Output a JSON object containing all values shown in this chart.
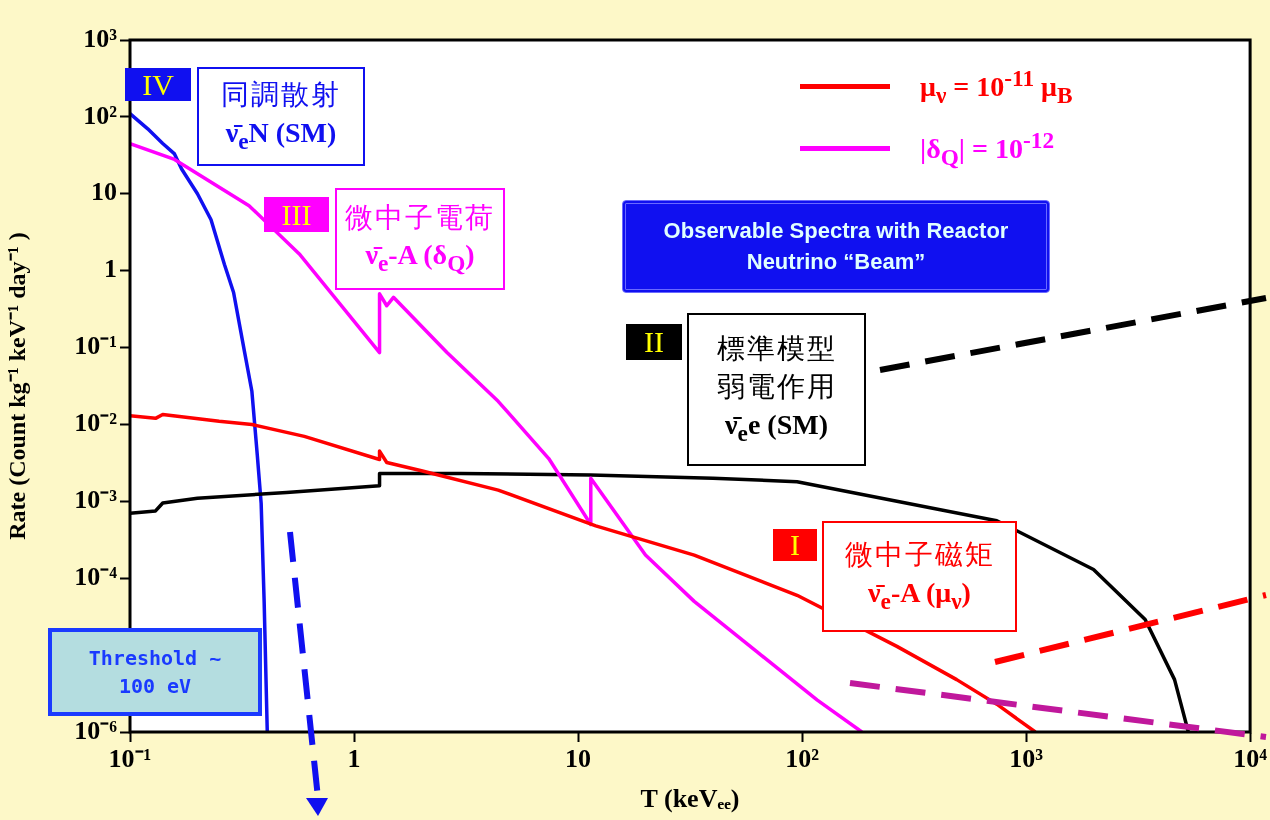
{
  "chart_data": {
    "type": "line",
    "xlabel": "T (keVₑₑ)",
    "ylabel": "Rate (Count kg⁻¹ keV⁻¹ day⁻¹ )",
    "log": "xy",
    "marker": "none",
    "legend": "top right",
    "xlim": [
      0.1,
      10000
    ],
    "xticks": [
      {
        "value": 0.1,
        "label": "10⁻¹"
      },
      1,
      10,
      {
        "value": 100,
        "label": "10²"
      },
      {
        "value": 1000,
        "label": "10³"
      },
      {
        "value": 10000,
        "label": "10⁴"
      }
    ],
    "ylim": [
      1e-06,
      1000
    ],
    "yticks": [
      {
        "value": 1e-06,
        "label": "10⁻⁶"
      },
      {
        "value": 1e-05,
        "label": null
      },
      {
        "value": 0.0001,
        "label": "10⁻⁴"
      },
      {
        "value": 0.001,
        "label": "10⁻³"
      },
      {
        "value": 0.01,
        "label": "10⁻²"
      },
      {
        "value": 0.1,
        "label": "10⁻¹"
      },
      1,
      10,
      {
        "value": 100,
        "label": "10²"
      },
      {
        "value": 1000,
        "label": "10³"
      }
    ],
    "series": [
      {
        "name": "μ$_{ν}$ = 10$^{-11}$ μ$_{B}$",
        "color": "#ff0000",
        "x": [
          0.1,
          0.13,
          0.14,
          0.25,
          0.35,
          0.6,
          1.3,
          1.3,
          1.4,
          2,
          4.4,
          12,
          33,
          95,
          265,
          490,
          740,
          1100
        ],
        "values": [
          0.013,
          0.012,
          0.0135,
          0.011,
          0.01,
          0.007,
          0.0035,
          0.0045,
          0.0032,
          0.0025,
          0.0014,
          0.00048,
          0.0002,
          6e-05,
          1.3e-05,
          4.8e-06,
          2.3e-06,
          1e-06
        ]
      },
      {
        "name": "|δ$_{Q}$| = 10$^{-12}$",
        "color": "#ff00ff",
        "x": [
          0.1,
          0.158,
          0.34,
          0.57,
          1.3,
          1.3,
          1.4,
          1.5,
          2.6,
          4.4,
          7.4,
          11.4,
          11.4,
          20,
          33,
          63,
          117,
          185
        ],
        "values": [
          45,
          28,
          7,
          1.65,
          0.086,
          0.5,
          0.35,
          0.45,
          0.086,
          0.02,
          0.0036,
          0.0005,
          0.002,
          0.0002,
          5e-05,
          1.1e-05,
          2.6e-06,
          1e-06
        ]
      },
      {
        "color": "#000000",
        "x": [
          0.1,
          0.13,
          0.14,
          0.2,
          0.5,
          1.3,
          1.3,
          3,
          11.4,
          40,
          95,
          265,
          740,
          2000,
          3400,
          4600,
          5300
        ],
        "values": [
          0.0007,
          0.00075,
          0.00095,
          0.0011,
          0.0013,
          0.0016,
          0.0023,
          0.0023,
          0.0022,
          0.002,
          0.0018,
          0.001,
          0.00056,
          0.00013,
          2.9e-05,
          4.8e-06,
          1e-06
        ]
      },
      {
        "color": "#1010f0",
        "x": [
          0.1,
          0.12,
          0.14,
          0.158,
          0.17,
          0.2,
          0.23,
          0.264,
          0.29,
          0.325,
          0.35,
          0.37,
          0.385,
          0.397,
          0.41
        ],
        "values": [
          110,
          70,
          45,
          33,
          21,
          10,
          4.6,
          1.2,
          0.52,
          0.086,
          0.027,
          0.004,
          0.00094,
          5e-05,
          1e-06
        ]
      }
    ],
    "annotations": [
      "IV",
      "同調散射",
      "ν̄$_{e}$N (SM)",
      "III",
      "微中子電荷",
      "ν̄$_{e}$-A (δ$_{Q}$)",
      "II",
      "標準模型",
      "弱電作用",
      "ν̄$_{e}$e (SM)",
      "I",
      "微中子磁矩",
      "ν̄$_{e}$-A (μ$_{ν}$)",
      "Observable Spectra with Reactor Neutrino “Beam”",
      "Threshold ~ 100 eV"
    ]
  }
}
